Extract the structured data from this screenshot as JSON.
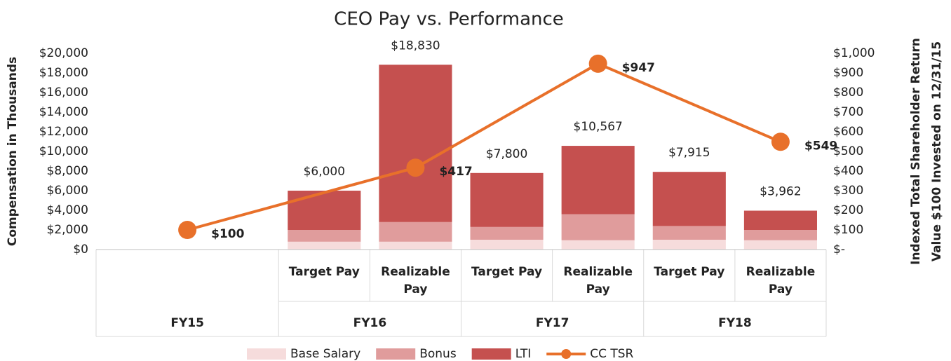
{
  "chart_data": {
    "type": "stacked_bar_line",
    "title": "CEO Pay vs. Performance",
    "ylabel": "Compensation in Thousands",
    "y2label": [
      "Indexed Total Shareholder Return",
      "Value $100 Invested on 12/31/15"
    ],
    "groups": [
      {
        "name": "FY15",
        "categories": [
          null
        ]
      },
      {
        "name": "FY16",
        "categories": [
          "Target Pay",
          "Realizable Pay"
        ]
      },
      {
        "name": "FY17",
        "categories": [
          "Target Pay",
          "Realizable Pay"
        ]
      },
      {
        "name": "FY18",
        "categories": [
          "Target Pay",
          "Realizable Pay"
        ]
      }
    ],
    "series": [
      {
        "name": "Base Salary",
        "color": "#f6dcdc",
        "values": [
          null,
          800,
          800,
          1000,
          950,
          1000,
          950
        ]
      },
      {
        "name": "Bonus",
        "color": "#e09c9c",
        "values": [
          null,
          1200,
          2000,
          1300,
          2650,
          1400,
          1050
        ]
      },
      {
        "name": "LTI",
        "color": "#c5504f",
        "values": [
          null,
          4000,
          16030,
          5500,
          6967,
          5515,
          1962
        ]
      }
    ],
    "totals": {
      "values": [
        null,
        6000,
        18830,
        7800,
        10567,
        7915,
        3962
      ],
      "value_labels": [
        null,
        "$6,000",
        "$18,830",
        "$7,800",
        "$10,567",
        "$7,915",
        "$3,962"
      ]
    },
    "line_series": {
      "name": "CC TSR",
      "color": "#e8702a",
      "axis": "y2",
      "values": [
        100,
        417,
        947,
        549
      ],
      "value_labels": [
        "$100",
        "$417",
        "$947",
        "$549"
      ]
    },
    "ylim": [
      0,
      20000
    ],
    "yticks": [
      {
        "value": 0,
        "label": "$0"
      },
      {
        "value": 2000,
        "label": "$2,000"
      },
      {
        "value": 4000,
        "label": "$4,000"
      },
      {
        "value": 6000,
        "label": "$6,000"
      },
      {
        "value": 8000,
        "label": "$8,000"
      },
      {
        "value": 10000,
        "label": "$10,000"
      },
      {
        "value": 12000,
        "label": "$12,000"
      },
      {
        "value": 14000,
        "label": "$14,000"
      },
      {
        "value": 16000,
        "label": "$16,000"
      },
      {
        "value": 18000,
        "label": "$18,000"
      },
      {
        "value": 20000,
        "label": "$20,000"
      }
    ],
    "y2lim": [
      0,
      1000
    ],
    "y2ticks": [
      {
        "value": 0,
        "label": "$-"
      },
      {
        "value": 100,
        "label": "$100"
      },
      {
        "value": 200,
        "label": "$200"
      },
      {
        "value": 300,
        "label": "$300"
      },
      {
        "value": 400,
        "label": "$400"
      },
      {
        "value": 500,
        "label": "$500"
      },
      {
        "value": 600,
        "label": "$600"
      },
      {
        "value": 700,
        "label": "$700"
      },
      {
        "value": 800,
        "label": "$800"
      },
      {
        "value": 900,
        "label": "$900"
      },
      {
        "value": 1000,
        "label": "$1,000"
      }
    ],
    "legend": "bottom"
  }
}
